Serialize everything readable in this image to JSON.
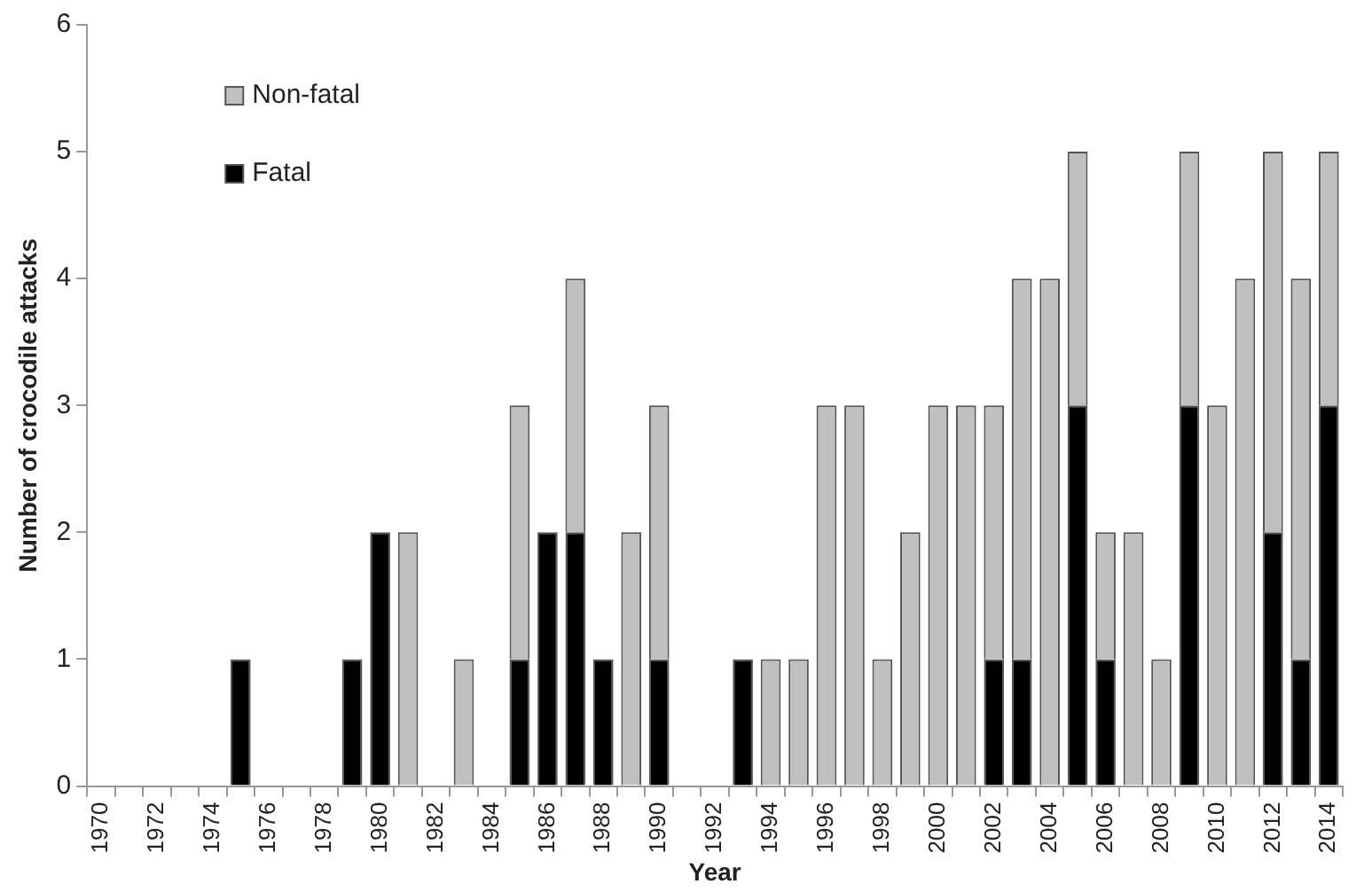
{
  "chart_data": {
    "type": "bar",
    "stacked": true,
    "xlabel": "Year",
    "ylabel": "Number of crocodile attacks",
    "categories": [
      "1970",
      null,
      "1972",
      null,
      "1974",
      null,
      "1976",
      null,
      "1978",
      null,
      "1980",
      null,
      "1982",
      null,
      "1984",
      null,
      "1986",
      null,
      "1988",
      null,
      "1990",
      null,
      "1992",
      null,
      "1994",
      null,
      "1996",
      null,
      "1998",
      null,
      "2000",
      null,
      "2002",
      null,
      "2004",
      null,
      "2006",
      null,
      "2008",
      null,
      "2010",
      null,
      "2012",
      null,
      "2014"
    ],
    "series": [
      {
        "name": "Fatal",
        "color": "#000000",
        "values": [
          0,
          0,
          0,
          0,
          0,
          1,
          0,
          0,
          0,
          1,
          2,
          0,
          0,
          0,
          0,
          1,
          2,
          2,
          1,
          0,
          1,
          0,
          0,
          1,
          0,
          0,
          0,
          0,
          0,
          0,
          0,
          0,
          1,
          1,
          0,
          3,
          1,
          0,
          0,
          3,
          0,
          0,
          2,
          1,
          3
        ]
      },
      {
        "name": "Non-fatal",
        "color": "#c0c0c0",
        "values": [
          0,
          0,
          0,
          0,
          0,
          0,
          0,
          0,
          0,
          0,
          0,
          2,
          0,
          1,
          0,
          2,
          0,
          2,
          0,
          2,
          2,
          0,
          0,
          0,
          1,
          1,
          3,
          3,
          1,
          2,
          3,
          3,
          2,
          3,
          4,
          2,
          1,
          2,
          1,
          2,
          3,
          4,
          3,
          3,
          2
        ]
      }
    ],
    "ylim": [
      0,
      6
    ],
    "yticks": [
      0,
      1,
      2,
      3,
      4,
      5,
      6
    ],
    "grid": false,
    "legend": "top left"
  }
}
